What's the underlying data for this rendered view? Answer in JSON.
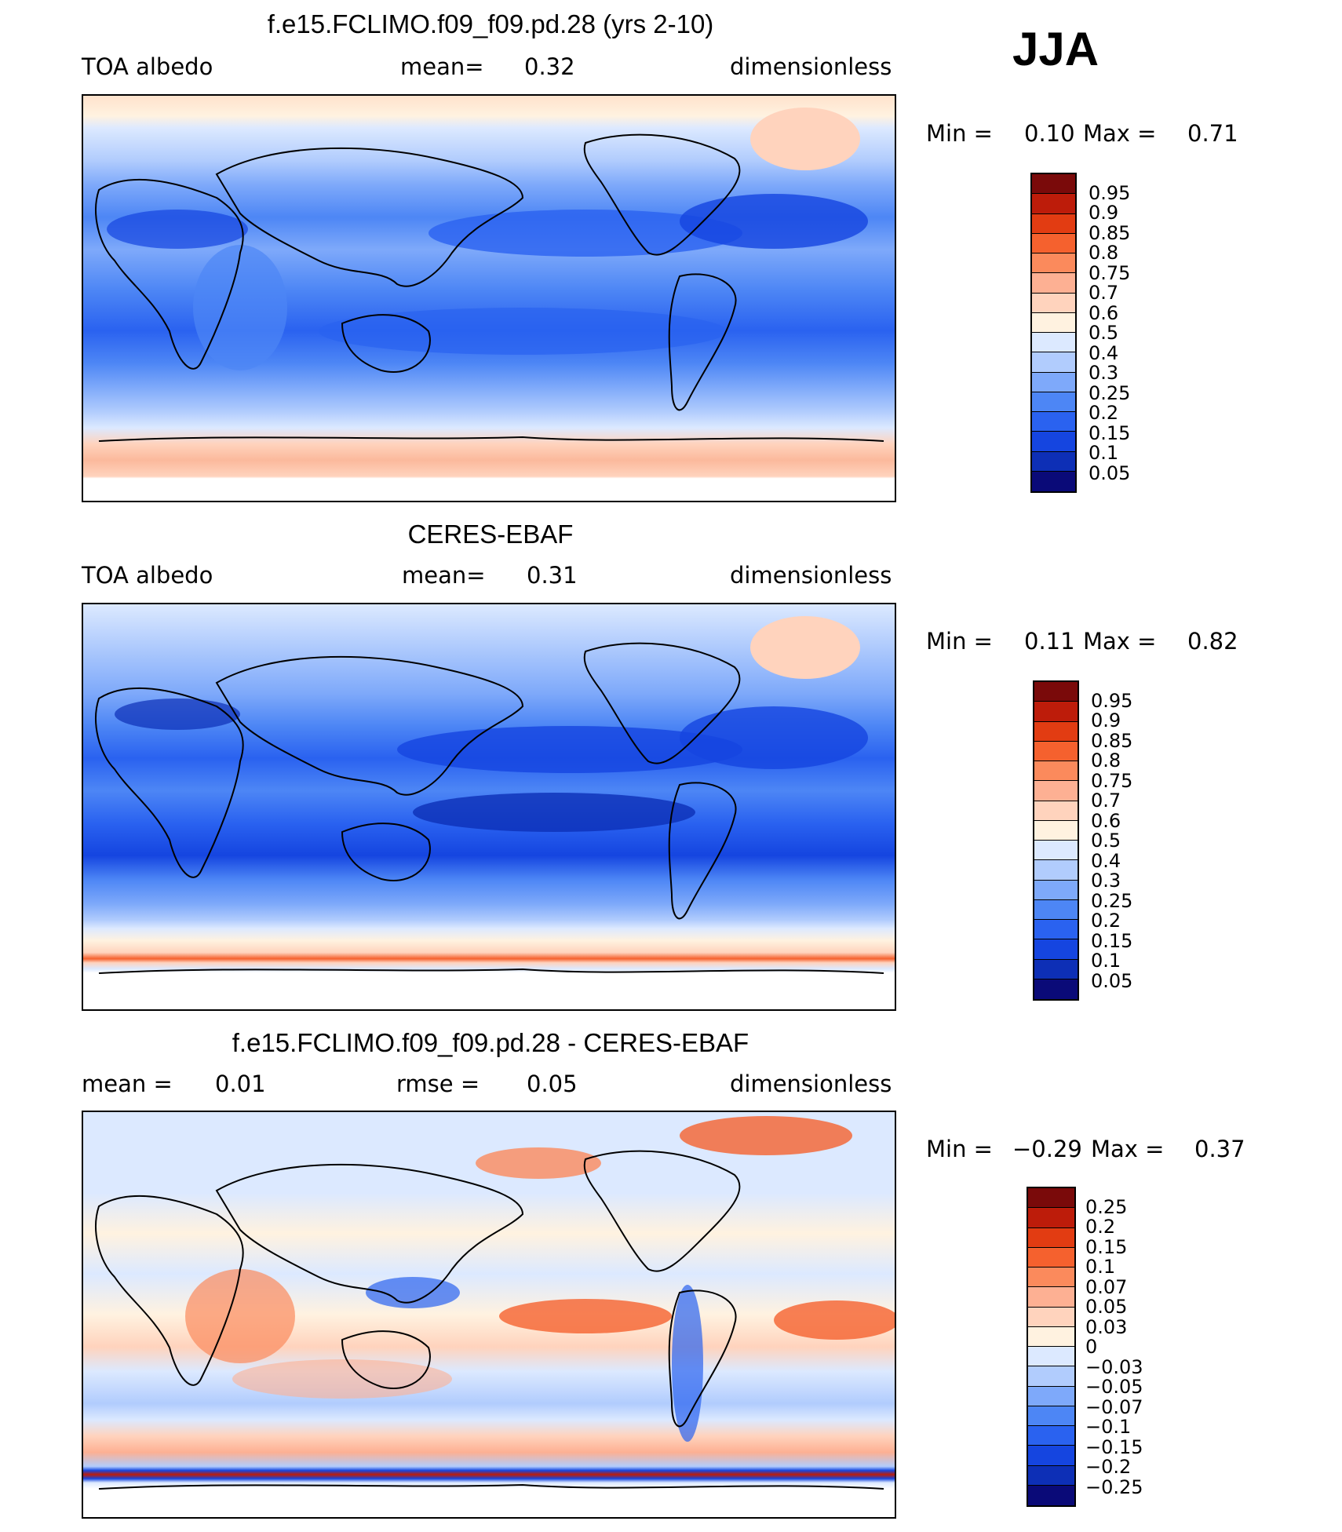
{
  "season": "JJA",
  "colors": {
    "abs_scale": [
      "#0a0a78",
      "#0d2fb6",
      "#1545e0",
      "#2a62f0",
      "#4d86f5",
      "#7ea9fa",
      "#b1ccfd",
      "#dce9ff",
      "#fff2e0",
      "#ffd3bd",
      "#fdb093",
      "#fb8a5c",
      "#f5612e",
      "#e23c12",
      "#bd1c0a",
      "#7a0a0a"
    ],
    "diff_scale": [
      "#0a0a78",
      "#0d2fb6",
      "#1545e0",
      "#2a62f0",
      "#4d86f5",
      "#7ea9fa",
      "#b1ccfd",
      "#dce9ff",
      "#fff2e0",
      "#ffd3bd",
      "#fdb093",
      "#fb8a5c",
      "#f5612e",
      "#e23c12",
      "#bd1c0a",
      "#7a0a0a"
    ]
  },
  "panels": [
    {
      "title": "f.e15.FCLIMO.f09_f09.pd.28 (yrs 2-10)",
      "left_label": "TOA  albedo",
      "mid_label": "mean=",
      "mid_value": "0.32",
      "units": "dimensionless",
      "min_label": "Min  =",
      "min_value": "0.10",
      "max_label": "Max  =",
      "max_value": "0.71",
      "tick_labels": [
        "0.95",
        "0.9",
        "0.85",
        "0.8",
        "0.75",
        "0.7",
        "0.6",
        "0.5",
        "0.4",
        "0.3",
        "0.25",
        "0.2",
        "0.15",
        "0.1",
        "0.05"
      ]
    },
    {
      "title": "CERES-EBAF",
      "left_label": "TOA  albedo",
      "mid_label": "mean=",
      "mid_value": "0.31",
      "units": "dimensionless",
      "min_label": "Min  =",
      "min_value": "0.11",
      "max_label": "Max  =",
      "max_value": "0.82",
      "tick_labels": [
        "0.95",
        "0.9",
        "0.85",
        "0.8",
        "0.75",
        "0.7",
        "0.6",
        "0.5",
        "0.4",
        "0.3",
        "0.25",
        "0.2",
        "0.15",
        "0.1",
        "0.05"
      ]
    },
    {
      "title": "f.e15.FCLIMO.f09_f09.pd.28 - CERES-EBAF",
      "left_label": "mean  =",
      "left_value": "0.01",
      "mid_label": "rmse  =",
      "mid_value": "0.05",
      "units": "dimensionless",
      "min_label": "Min  =",
      "min_value": "−0.29",
      "max_label": "Max  =",
      "max_value": "0.37",
      "tick_labels": [
        "0.25",
        "0.2",
        "0.15",
        "0.1",
        "0.07",
        "0.05",
        "0.03",
        "0",
        "−0.03",
        "−0.05",
        "−0.07",
        "−0.1",
        "−0.15",
        "−0.2",
        "−0.25"
      ]
    }
  ]
}
